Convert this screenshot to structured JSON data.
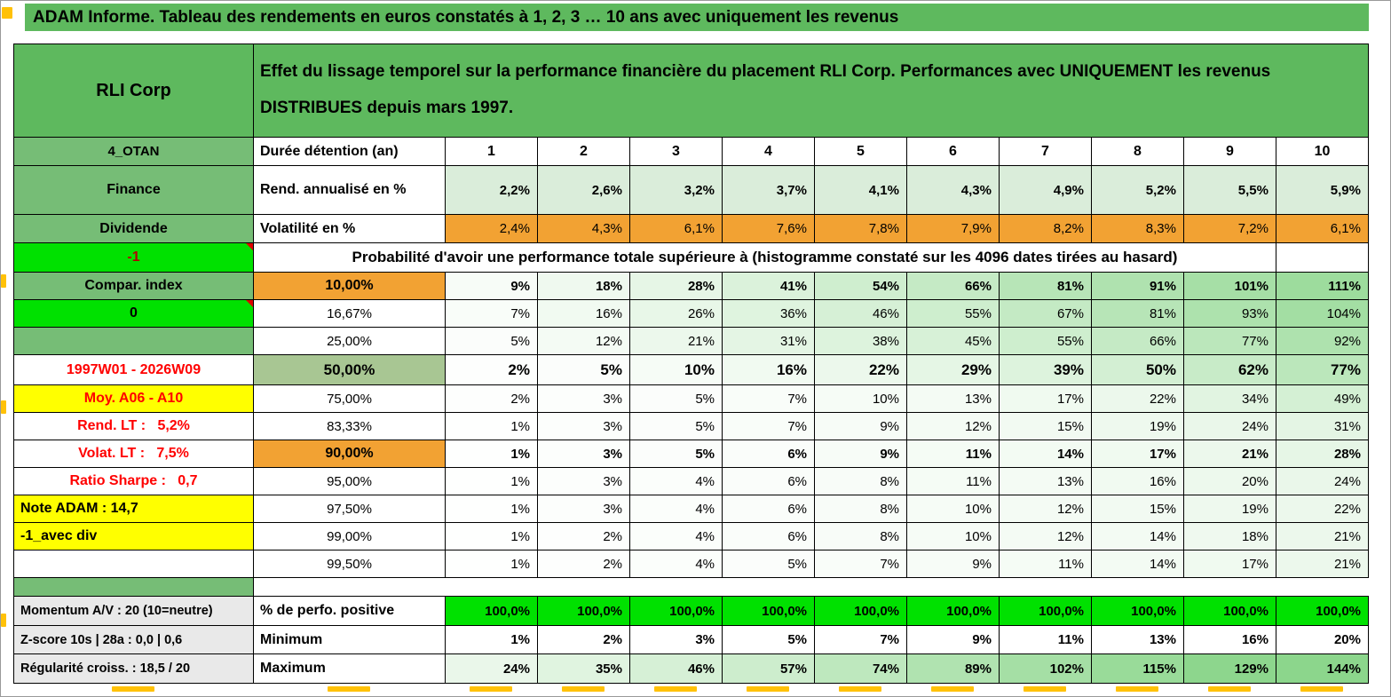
{
  "banner": {
    "title": "ADAM Informe. Tableau des rendements en euros constatés à 1, 2, 3 … 10 ans avec uniquement les revenus"
  },
  "header": {
    "product": "RLI Corp",
    "description": "Effet du lissage temporel sur la performance financière du placement RLI Corp. Performances avec UNIQUEMENT les revenus DISTRIBUES depuis mars 1997."
  },
  "columns": {
    "duration_label": "Durée détention (an)",
    "years": [
      "1",
      "2",
      "3",
      "4",
      "5",
      "6",
      "7",
      "8",
      "9",
      "10"
    ]
  },
  "left_column": {
    "code": "4_OTAN",
    "minus_one": "-1",
    "zero": "0",
    "compar": "Compar. index",
    "period": "1997W01 - 2026W09",
    "moy": "Moy. A06 - A10",
    "rend_lt": "Rend. LT :   5,2%",
    "volat_lt": "Volat. LT :   7,5%",
    "sharpe": "Ratio Sharpe :   0,7",
    "note": "Note ADAM : 14,7",
    "avec_div": "-1_avec div"
  },
  "metrics": {
    "annualized": {
      "left": "Finance",
      "label": "Rend. annualisé en %",
      "values": [
        "2,2%",
        "2,6%",
        "3,2%",
        "3,7%",
        "4,1%",
        "4,3%",
        "4,9%",
        "5,2%",
        "5,5%",
        "5,9%"
      ]
    },
    "volatility": {
      "left": "Dividende",
      "label": "Volatilité en %",
      "values": [
        "2,4%",
        "4,3%",
        "6,1%",
        "7,6%",
        "7,8%",
        "7,9%",
        "8,2%",
        "8,3%",
        "7,2%",
        "6,1%"
      ]
    }
  },
  "probability": {
    "title": "Probabilité d'avoir une performance totale supérieure à (histogramme constaté sur les 4096 dates tirées au hasard)",
    "rows": [
      {
        "threshold": "10,00%",
        "values": [
          "9%",
          "18%",
          "28%",
          "41%",
          "54%",
          "66%",
          "81%",
          "91%",
          "101%",
          "111%"
        ]
      },
      {
        "threshold": "16,67%",
        "values": [
          "7%",
          "16%",
          "26%",
          "36%",
          "46%",
          "55%",
          "67%",
          "81%",
          "93%",
          "104%"
        ]
      },
      {
        "threshold": "25,00%",
        "values": [
          "5%",
          "12%",
          "21%",
          "31%",
          "38%",
          "45%",
          "55%",
          "66%",
          "77%",
          "92%"
        ]
      },
      {
        "threshold": "50,00%",
        "values": [
          "2%",
          "5%",
          "10%",
          "16%",
          "22%",
          "29%",
          "39%",
          "50%",
          "62%",
          "77%"
        ]
      },
      {
        "threshold": "75,00%",
        "values": [
          "2%",
          "3%",
          "5%",
          "7%",
          "10%",
          "13%",
          "17%",
          "22%",
          "34%",
          "49%"
        ]
      },
      {
        "threshold": "83,33%",
        "values": [
          "1%",
          "3%",
          "5%",
          "7%",
          "9%",
          "12%",
          "15%",
          "19%",
          "24%",
          "31%"
        ]
      },
      {
        "threshold": "90,00%",
        "values": [
          "1%",
          "3%",
          "5%",
          "6%",
          "9%",
          "11%",
          "14%",
          "17%",
          "21%",
          "28%"
        ]
      },
      {
        "threshold": "95,00%",
        "values": [
          "1%",
          "3%",
          "4%",
          "6%",
          "8%",
          "11%",
          "13%",
          "16%",
          "20%",
          "24%"
        ]
      },
      {
        "threshold": "97,50%",
        "values": [
          "1%",
          "3%",
          "4%",
          "6%",
          "8%",
          "10%",
          "12%",
          "15%",
          "19%",
          "22%"
        ]
      },
      {
        "threshold": "99,00%",
        "values": [
          "1%",
          "2%",
          "4%",
          "6%",
          "8%",
          "10%",
          "12%",
          "14%",
          "18%",
          "21%"
        ]
      },
      {
        "threshold": "99,50%",
        "values": [
          "1%",
          "2%",
          "4%",
          "5%",
          "7%",
          "9%",
          "11%",
          "14%",
          "17%",
          "21%"
        ]
      }
    ]
  },
  "summary": {
    "rows": [
      {
        "left": "Momentum A/V : 20 (10=neutre)",
        "label": "% de perfo. positive",
        "values": [
          "100,0%",
          "100,0%",
          "100,0%",
          "100,0%",
          "100,0%",
          "100,0%",
          "100,0%",
          "100,0%",
          "100,0%",
          "100,0%"
        ]
      },
      {
        "left": "Z-score 10s | 28a : 0,0 | 0,6",
        "label": "Minimum",
        "values": [
          "1%",
          "2%",
          "3%",
          "5%",
          "7%",
          "9%",
          "11%",
          "13%",
          "16%",
          "20%"
        ]
      },
      {
        "left": "Régularité croiss. : 18,5 / 20",
        "label": "Maximum",
        "values": [
          "24%",
          "35%",
          "46%",
          "57%",
          "74%",
          "89%",
          "102%",
          "115%",
          "129%",
          "144%"
        ]
      }
    ]
  },
  "colors": {
    "green": "#5EB95E",
    "green_soft": "#76BD76",
    "bright_green": "#00E100",
    "orange": "#F2A233",
    "yellow": "#FFFF00",
    "sage": "#A8C693",
    "row_green": "#DAEDDA",
    "gray": "#E9E9E9",
    "red": "#FF0000",
    "dark_red": "#B00000",
    "marker_yellow": "#FFC107"
  }
}
